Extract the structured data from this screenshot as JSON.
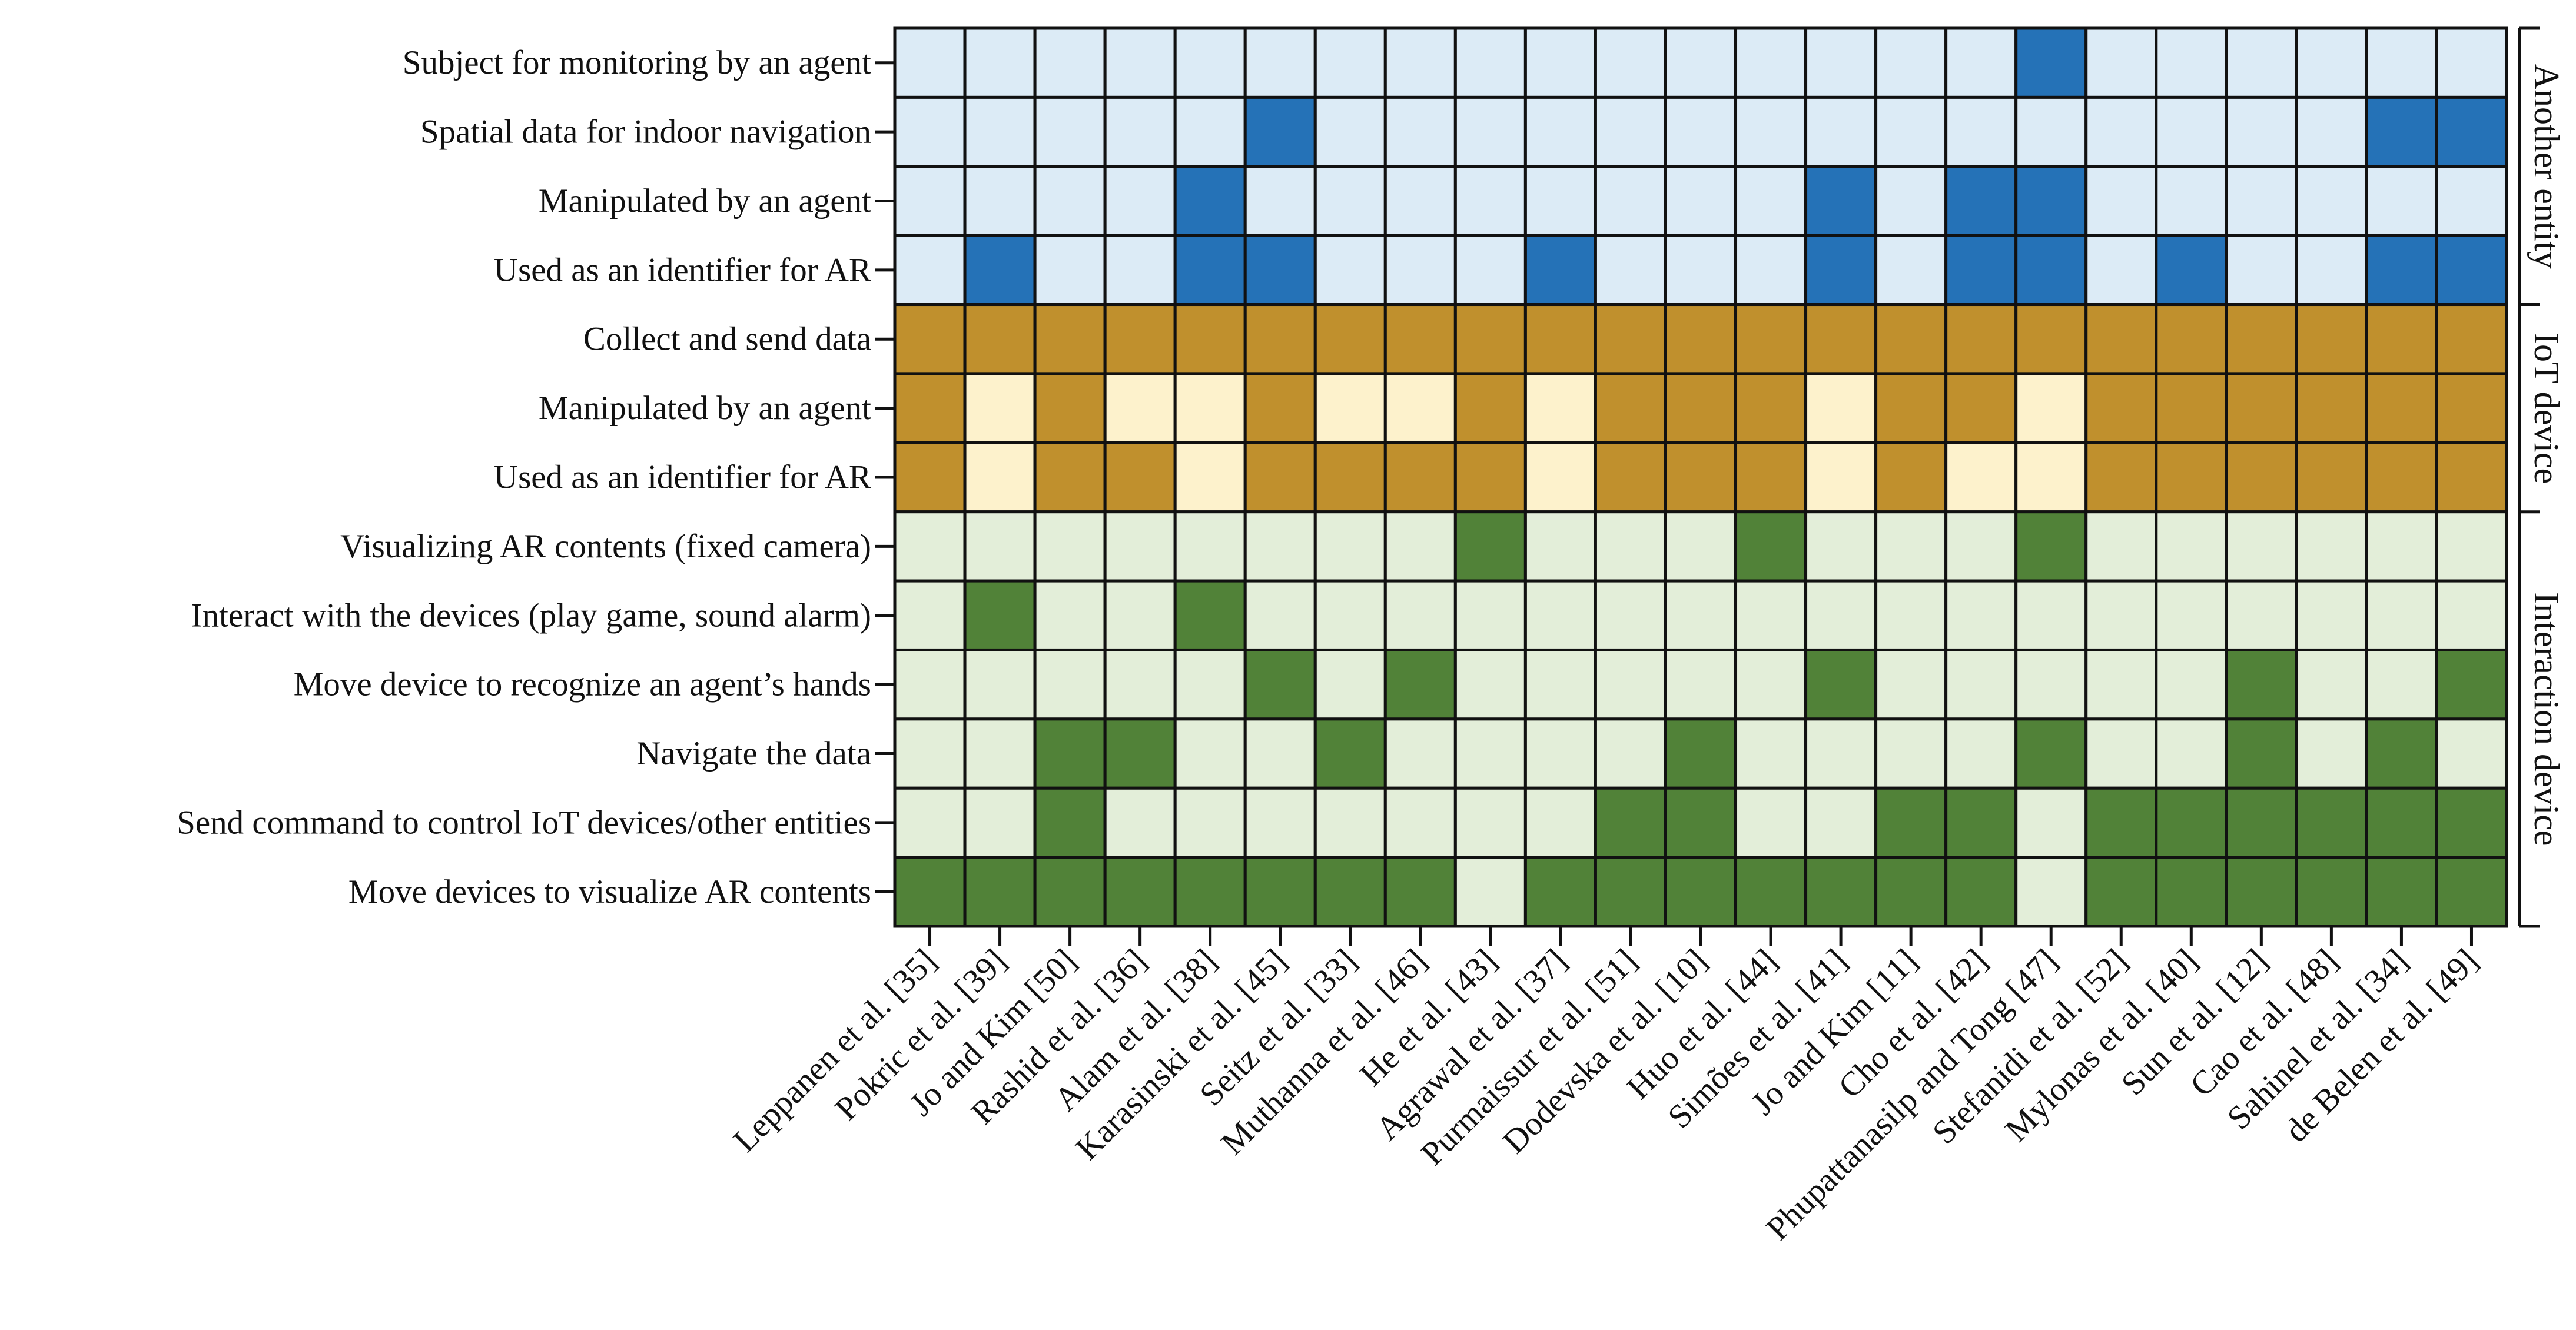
{
  "chart_data": {
    "type": "heatmap",
    "title": "",
    "xlabel": "",
    "ylabel": "",
    "columns": [
      "Leppanen et al. [35]",
      "Pokric et al. [39]",
      "Jo and Kim [50]",
      "Rashid et al. [36]",
      "Alam et al. [38]",
      "Karasinski et al. [45]",
      "Seitz et al. [33]",
      "Muthanna et al. [46]",
      "He et al. [43]",
      "Agrawal et al. [37]",
      "Purmaissur et al. [51]",
      "Dodevska et al. [10]",
      "Huo et al. [44]",
      "Simões et al. [41]",
      "Jo and Kim [11]",
      "Cho et al. [42]",
      "Phupattanasilp and Tong [47]",
      "Stefanidi et al. [52]",
      "Mylonas et al. [40]",
      "Sun et al. [12]",
      "Cao et al. [48]",
      "Sahinel et al. [34]",
      "de Belen et al. [49]"
    ],
    "groups": [
      {
        "name": "Another entity",
        "colors": {
          "off": "#dcebf6",
          "on": "#2572b7"
        },
        "rows": [
          {
            "label": "Subject for monitoring by an agent",
            "values": [
              0,
              0,
              0,
              0,
              0,
              0,
              0,
              0,
              0,
              0,
              0,
              0,
              0,
              0,
              0,
              0,
              1,
              0,
              0,
              0,
              0,
              0,
              0
            ]
          },
          {
            "label": "Spatial data for indoor navigation",
            "values": [
              0,
              0,
              0,
              0,
              0,
              1,
              0,
              0,
              0,
              0,
              0,
              0,
              0,
              0,
              0,
              0,
              0,
              0,
              0,
              0,
              0,
              1,
              1
            ]
          },
          {
            "label": "Manipulated by an agent",
            "values": [
              0,
              0,
              0,
              0,
              1,
              0,
              0,
              0,
              0,
              0,
              0,
              0,
              0,
              1,
              0,
              1,
              1,
              0,
              0,
              0,
              0,
              0,
              0
            ]
          },
          {
            "label": "Used as an identifier for AR",
            "values": [
              0,
              1,
              0,
              0,
              1,
              1,
              0,
              0,
              0,
              1,
              0,
              0,
              0,
              1,
              0,
              1,
              1,
              0,
              1,
              0,
              0,
              1,
              1
            ]
          }
        ]
      },
      {
        "name": "IoT device",
        "colors": {
          "off": "#fdf2cc",
          "on": "#c0902d"
        },
        "rows": [
          {
            "label": "Collect and send data",
            "values": [
              1,
              1,
              1,
              1,
              1,
              1,
              1,
              1,
              1,
              1,
              1,
              1,
              1,
              1,
              1,
              1,
              1,
              1,
              1,
              1,
              1,
              1,
              1
            ]
          },
          {
            "label": "Manipulated by an agent",
            "values": [
              1,
              0,
              1,
              0,
              0,
              1,
              0,
              0,
              1,
              0,
              1,
              1,
              1,
              0,
              1,
              1,
              0,
              1,
              1,
              1,
              1,
              1,
              1
            ]
          },
          {
            "label": "Used as an identifier for AR",
            "values": [
              1,
              0,
              1,
              1,
              0,
              1,
              1,
              1,
              1,
              0,
              1,
              1,
              1,
              0,
              1,
              0,
              0,
              1,
              1,
              1,
              1,
              1,
              1
            ]
          }
        ]
      },
      {
        "name": "Interaction device",
        "colors": {
          "off": "#e3eed9",
          "on": "#518238"
        },
        "rows": [
          {
            "label": "Visualizing AR contents (fixed camera)",
            "values": [
              0,
              0,
              0,
              0,
              0,
              0,
              0,
              0,
              1,
              0,
              0,
              0,
              1,
              0,
              0,
              0,
              1,
              0,
              0,
              0,
              0,
              0,
              0
            ]
          },
          {
            "label": "Interact with the devices (play game, sound alarm)",
            "values": [
              0,
              1,
              0,
              0,
              1,
              0,
              0,
              0,
              0,
              0,
              0,
              0,
              0,
              0,
              0,
              0,
              0,
              0,
              0,
              0,
              0,
              0,
              0
            ]
          },
          {
            "label": "Move device to recognize an agent’s hands",
            "values": [
              0,
              0,
              0,
              0,
              0,
              1,
              0,
              1,
              0,
              0,
              0,
              0,
              0,
              1,
              0,
              0,
              0,
              0,
              0,
              1,
              0,
              0,
              1
            ]
          },
          {
            "label": "Navigate the data",
            "values": [
              0,
              0,
              1,
              1,
              0,
              0,
              1,
              0,
              0,
              0,
              0,
              1,
              0,
              0,
              0,
              0,
              1,
              0,
              0,
              1,
              0,
              1,
              0
            ]
          },
          {
            "label": "Send command to control IoT devices/other entities",
            "values": [
              0,
              0,
              1,
              0,
              0,
              0,
              0,
              0,
              0,
              0,
              1,
              1,
              0,
              0,
              1,
              1,
              0,
              1,
              1,
              1,
              1,
              1,
              1
            ]
          },
          {
            "label": "Move devices to visualize AR contents",
            "values": [
              1,
              1,
              1,
              1,
              1,
              1,
              1,
              1,
              0,
              1,
              1,
              1,
              1,
              1,
              1,
              1,
              0,
              1,
              1,
              1,
              1,
              1,
              1
            ]
          }
        ]
      }
    ]
  }
}
